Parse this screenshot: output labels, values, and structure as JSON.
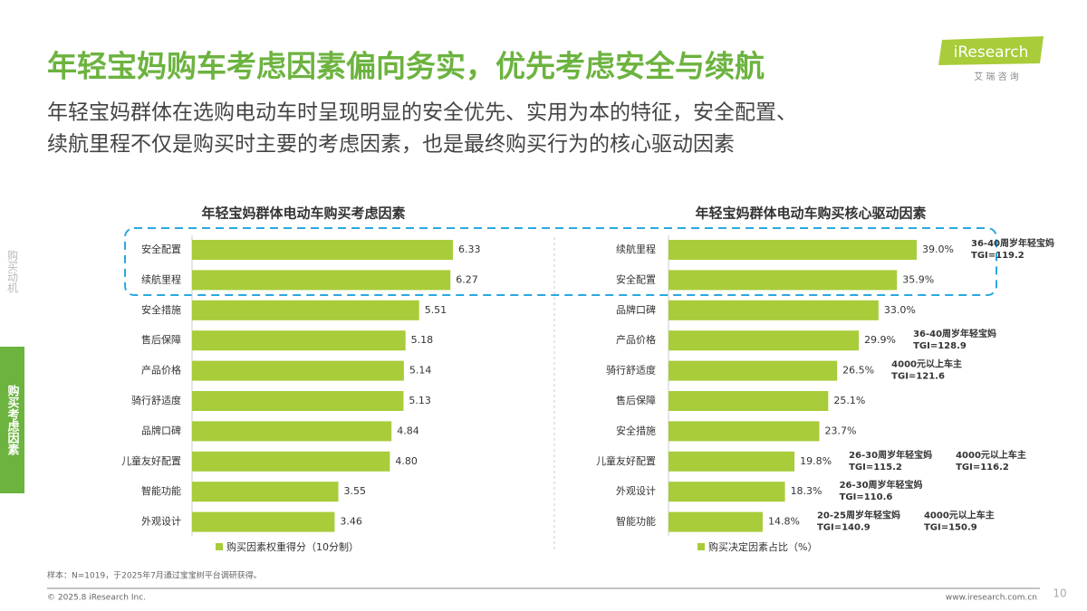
{
  "header": {
    "title": "年轻宝妈购车考虑因素偏向务实，优先考虑安全与续航",
    "subtitle": [
      "年轻宝妈群体在选购电动车时呈现明显的安全优先、实用为本的特征，安全配置、",
      "续航里程不仅是购买时主要的考虑因素，也是最终购买行为的核心驱动因素"
    ]
  },
  "logo": {
    "brand": "iResearch",
    "tagline": "艾 瑞 咨 询"
  },
  "side_tabs": [
    "购买动机",
    "购买考虑因素"
  ],
  "chart_data": [
    {
      "type": "hbar",
      "title": "年轻宝妈群体电动车购买考虑因素",
      "categories": [
        "安全配置",
        "续航里程",
        "安全措施",
        "售后保障",
        "产品价格",
        "骑行舒适度",
        "品牌口碑",
        "儿童友好配置",
        "智能功能",
        "外观设计"
      ],
      "series": [
        {
          "name": "购买因素权重得分（10分制）",
          "color": "#a8cc3a",
          "values": [
            6.33,
            6.27,
            5.51,
            5.18,
            5.14,
            5.13,
            4.84,
            4.8,
            3.55,
            3.46
          ],
          "value_labels": [
            "6.33",
            "6.27",
            "5.51",
            "5.18",
            "5.14",
            "5.13",
            "4.84",
            "4.80",
            "3.55",
            "3.46"
          ]
        }
      ]
    },
    {
      "type": "hbar",
      "title": "年轻宝妈群体电动车购买核心驱动因素",
      "categories": [
        "续航里程",
        "安全配置",
        "品牌口碑",
        "产品价格",
        "骑行舒适度",
        "售后保障",
        "安全措施",
        "儿童友好配置",
        "外观设计",
        "智能功能"
      ],
      "series": [
        {
          "name": "购买决定因素占比（%）",
          "color": "#a8cc3a",
          "values": [
            39.0,
            35.9,
            33.0,
            29.9,
            26.5,
            25.1,
            23.7,
            19.8,
            18.3,
            14.8
          ],
          "value_labels": [
            "39.0%",
            "35.9%",
            "33.0%",
            "29.9%",
            "26.5%",
            "25.1%",
            "23.7%",
            "19.8%",
            "18.3%",
            "14.8%"
          ]
        }
      ],
      "annotations": [
        {
          "category": "续航里程",
          "lines": [
            "36-40周岁年轻宝妈",
            "TGI=119.2"
          ]
        },
        {
          "category": "产品价格",
          "lines": [
            "36-40周岁年轻宝妈",
            "TGI=128.9"
          ]
        },
        {
          "category": "骑行舒适度",
          "lines": [
            "4000元以上车主",
            "TGI=121.6"
          ]
        },
        {
          "category": "儿童友好配置",
          "lines": [
            "26-30周岁年轻宝妈",
            "TGI=115.2"
          ]
        },
        {
          "category": "儿童友好配置",
          "lines": [
            "4000元以上车主",
            "TGI=116.2"
          ]
        },
        {
          "category": "外观设计",
          "lines": [
            "26-30周岁年轻宝妈",
            "TGI=110.6"
          ]
        },
        {
          "category": "智能功能",
          "lines": [
            "20-25周岁年轻宝妈",
            "TGI=140.9"
          ]
        },
        {
          "category": "智能功能",
          "lines": [
            "4000元以上车主",
            "TGI=150.9"
          ]
        }
      ]
    }
  ],
  "note": "样本：N=1019，于2025年7月通过宝宝树平台调研获得。",
  "footer": {
    "copyright": "© 2025.8 iResearch Inc.",
    "url": "www.iresearch.com.cn",
    "page": "10"
  }
}
